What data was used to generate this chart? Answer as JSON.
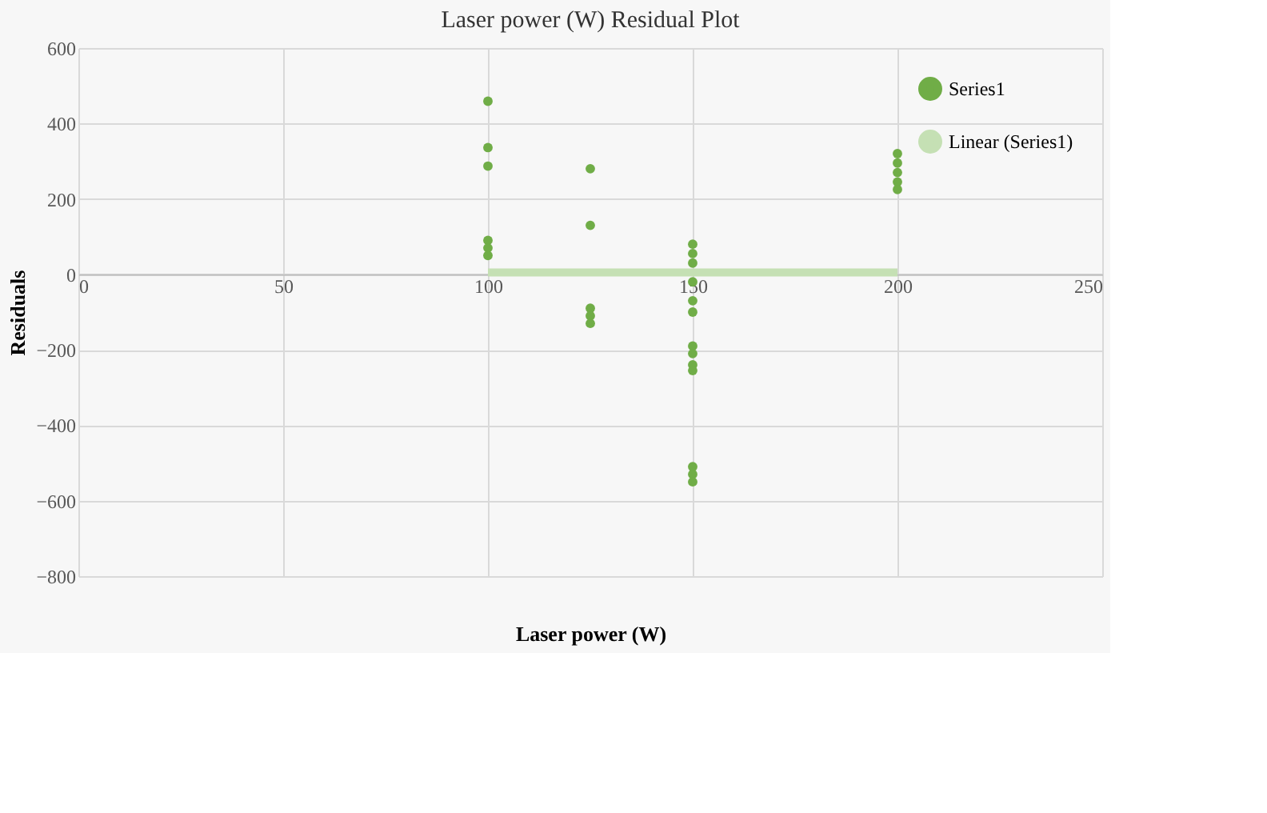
{
  "chart_data": {
    "type": "scatter",
    "title": "Laser power (W)  Residual Plot",
    "xlabel": "Laser power (W)",
    "ylabel": "Residuals",
    "xlim": [
      0,
      250
    ],
    "xticks": [
      0,
      50,
      100,
      150,
      200,
      250
    ],
    "ylim": [
      -800,
      600
    ],
    "yticks": [
      -800,
      -600,
      -400,
      -200,
      0,
      200,
      400,
      600
    ],
    "grid": true,
    "legend": "top right",
    "marker": "circle",
    "series": [
      {
        "name": "Series1",
        "color": "#70ad47",
        "x": [
          100,
          100,
          100,
          100,
          100,
          100,
          125,
          125,
          125,
          125,
          125,
          150,
          150,
          150,
          150,
          150,
          150,
          150,
          150,
          150,
          150,
          150,
          150,
          150,
          200,
          200,
          200,
          200,
          200
        ],
        "values": [
          459,
          336,
          287,
          90,
          70,
          50,
          280,
          130,
          -90,
          -110,
          -130,
          80,
          55,
          30,
          -20,
          -70,
          -100,
          -190,
          -210,
          -240,
          -255,
          -510,
          -530,
          -550,
          320,
          295,
          270,
          245,
          225
        ]
      },
      {
        "name": "Linear (Series1)",
        "color": "#c5e0b4",
        "type": "line",
        "marker": "none",
        "x": [
          100,
          200
        ],
        "values": [
          5,
          5
        ]
      }
    ]
  }
}
